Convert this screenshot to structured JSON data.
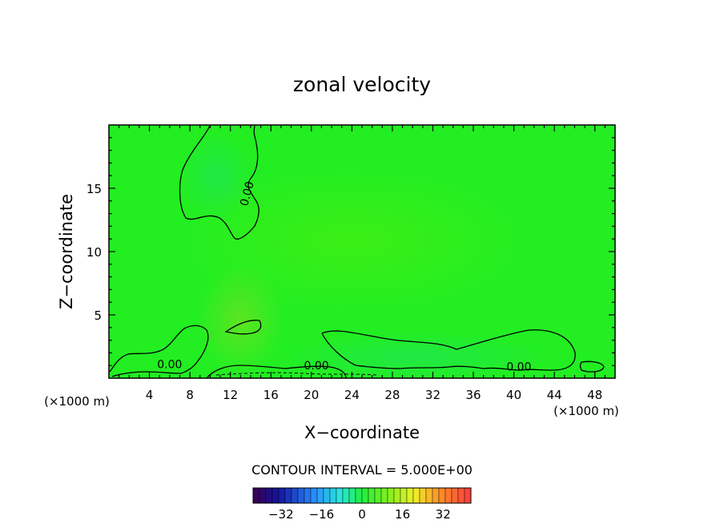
{
  "chart_data": {
    "type": "heatmap",
    "title": "zonal velocity",
    "xlabel": "X−coordinate",
    "ylabel": "Z−coordinate",
    "x_unit": "(×1000 m)",
    "xlim": [
      0,
      50
    ],
    "ylim": [
      0,
      20
    ],
    "x_ticks": [
      4,
      8,
      12,
      16,
      20,
      24,
      28,
      32,
      36,
      40,
      44,
      48
    ],
    "y_ticks": [
      5,
      10,
      15
    ],
    "field_color": "#22ee22",
    "contour_labels": [
      {
        "text": "0.00",
        "x": 6.0,
        "y": 0.8
      },
      {
        "text": "0.00",
        "x": 20.5,
        "y": 0.7
      },
      {
        "text": "0.00",
        "x": 40.5,
        "y": 0.6
      },
      {
        "text": "0.00",
        "x": 14.0,
        "y": 14.5,
        "rotate": -75
      }
    ],
    "contour_interval_text": "CONTOUR INTERVAL =  5.000E+00",
    "colorbar": {
      "ticks": [
        -32,
        -16,
        0,
        16,
        32
      ],
      "min": -43,
      "max": 43
    }
  }
}
